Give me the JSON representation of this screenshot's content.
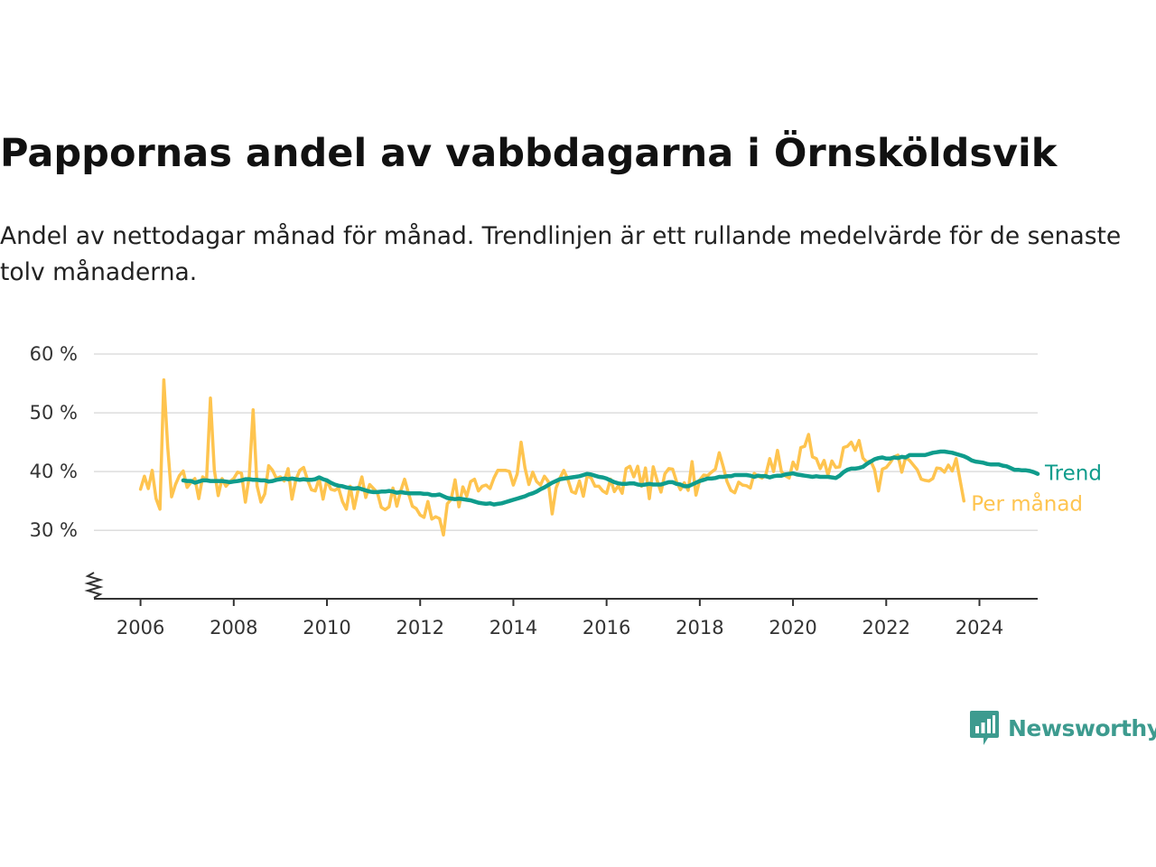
{
  "title": "Pappornas andel av vabbdagarna i Örnsköldsvik",
  "subtitle": "Andel av nettodagar månad för månad. Trendlinjen är ett rullande medelvärde för de senaste tolv månaderna.",
  "brand": {
    "name": "Newsworthy",
    "icon": "newsworthy-bar-chart-bubble-icon",
    "color": "#3d9b8f"
  },
  "chart_data": {
    "type": "line",
    "title": "Pappornas andel av vabbdagarna i Örnsköldsvik",
    "xlabel": "",
    "ylabel": "",
    "y_unit": "%",
    "xlim": [
      "2005-01",
      "2025-04"
    ],
    "ylim": [
      24.5,
      60
    ],
    "y_axis_break": true,
    "y_ticks": [
      30,
      40,
      50,
      60
    ],
    "y_tick_labels": [
      "30 %",
      "40 %",
      "50 %",
      "60 %"
    ],
    "x_ticks": [
      "2006",
      "2008",
      "2010",
      "2012",
      "2014",
      "2016",
      "2018",
      "2020",
      "2022",
      "2024"
    ],
    "grid": "horizontal",
    "legend": "direct labels at line ends (right)",
    "colors": {
      "monthly": "#fec44f",
      "trend": "#0f9c8c",
      "grid": "#dddddd",
      "axis": "#333333"
    },
    "series": [
      {
        "name": "Per månad",
        "start": "2006-01",
        "frequency": "monthly",
        "values": [
          37,
          39.2,
          37.1,
          40.2,
          35.4,
          33.6,
          55.6,
          44.2,
          35.7,
          37.8,
          39.3,
          40.1,
          37.3,
          38.2,
          38.8,
          35.4,
          39.1,
          38.6,
          52.5,
          40.3,
          35.9,
          38.8,
          37.5,
          38.3,
          38.8,
          39.9,
          39.7,
          34.8,
          39.2,
          50.5,
          37.6,
          34.8,
          36.2,
          41,
          40.2,
          38.8,
          39.1,
          38.4,
          40.5,
          35.3,
          38.6,
          40.2,
          40.7,
          38.6,
          36.9,
          36.7,
          38.8,
          35.3,
          38.6,
          37,
          36.8,
          37.2,
          34.9,
          33.6,
          37.5,
          33.7,
          36.8,
          39.1,
          35.6,
          37.8,
          37.1,
          36.4,
          33.9,
          33.5,
          34,
          37.2,
          34.1,
          36.7,
          38.7,
          36.3,
          34.1,
          33.7,
          32.6,
          32.2,
          34.9,
          31.9,
          32.3,
          32,
          29.2,
          34.5,
          35.3,
          38.6,
          34,
          37.4,
          35.8,
          38.3,
          38.7,
          36.7,
          37.5,
          37.7,
          37.1,
          38.9,
          40.2,
          40.2,
          40.2,
          40,
          37.7,
          39.6,
          45,
          40.6,
          37.8,
          39.9,
          38.3,
          37.7,
          39.2,
          38.3,
          32.8,
          37.2,
          38.9,
          40.2,
          38.7,
          36.6,
          36.3,
          38.4,
          35.8,
          39.3,
          38.9,
          37.5,
          37.5,
          36.7,
          36.3,
          38.7,
          36.6,
          37.6,
          36.3,
          40.5,
          40.9,
          39.1,
          40.9,
          37.5,
          40.6,
          35.4,
          40.8,
          38.5,
          36.5,
          39.6,
          40.5,
          40.4,
          38.3,
          36.9,
          38.1,
          36.8,
          41.7,
          36,
          38.6,
          39.4,
          39.3,
          39.9,
          40.4,
          43.2,
          40.9,
          38.3,
          36.8,
          36.4,
          38.2,
          37.7,
          37.6,
          37.2,
          39.7,
          39.2,
          38.9,
          39.5,
          42.2,
          40,
          43.6,
          40,
          39.3,
          38.9,
          41.6,
          40.4,
          44.1,
          44.3,
          46.3,
          42.5,
          42.2,
          40.5,
          41.9,
          39.4,
          41.8,
          40.7,
          40.8,
          44.1,
          44.3,
          45,
          43.6,
          45.3,
          42.3,
          41.6,
          41.8,
          40.3,
          36.7,
          40.4,
          40.7,
          41.5,
          42.5,
          42.8,
          39.9,
          42.4,
          41.9,
          41.1,
          40.3,
          38.7,
          38.5,
          38.4,
          38.8,
          40.6,
          40.5,
          39.9,
          41.1,
          40.1,
          42.2,
          38.6,
          35
        ]
      },
      {
        "name": "Trend",
        "start": "2006-12",
        "frequency": "monthly",
        "values": [
          38.5,
          38.4,
          38.4,
          38.1,
          38.3,
          38.5,
          38.5,
          38.4,
          38.4,
          38.4,
          38.4,
          38.3,
          38.2,
          38.3,
          38.4,
          38.5,
          38.7,
          38.7,
          38.6,
          38.6,
          38.5,
          38.5,
          38.3,
          38.4,
          38.6,
          38.7,
          38.8,
          38.7,
          38.8,
          38.7,
          38.6,
          38.7,
          38.6,
          38.6,
          38.7,
          39,
          38.7,
          38.5,
          38.1,
          37.8,
          37.6,
          37.5,
          37.3,
          37.2,
          37.1,
          37.2,
          37,
          36.8,
          36.6,
          36.5,
          36.5,
          36.6,
          36.6,
          36.7,
          36.6,
          36.4,
          36.5,
          36.4,
          36.3,
          36.3,
          36.3,
          36.3,
          36.2,
          36.2,
          36,
          36,
          36.1,
          35.8,
          35.5,
          35.4,
          35.3,
          35.4,
          35.3,
          35.2,
          35.1,
          34.9,
          34.7,
          34.6,
          34.5,
          34.6,
          34.4,
          34.5,
          34.6,
          34.8,
          35,
          35.2,
          35.4,
          35.6,
          35.8,
          36.1,
          36.3,
          36.6,
          37,
          37.3,
          37.7,
          38.1,
          38.4,
          38.7,
          38.8,
          38.9,
          39,
          39.1,
          39.2,
          39.4,
          39.6,
          39.5,
          39.3,
          39.1,
          39,
          38.8,
          38.5,
          38.2,
          38,
          37.9,
          37.9,
          38,
          38,
          37.8,
          37.7,
          37.8,
          37.9,
          37.8,
          37.8,
          37.8,
          38,
          38.2,
          38.2,
          37.9,
          37.8,
          37.5,
          37.5,
          37.8,
          38.1,
          38.4,
          38.6,
          38.8,
          38.8,
          38.9,
          39.1,
          39.1,
          39.2,
          39.2,
          39.4,
          39.4,
          39.4,
          39.4,
          39.3,
          39.1,
          39.3,
          39.2,
          39.2,
          39,
          39.2,
          39.3,
          39.3,
          39.5,
          39.6,
          39.7,
          39.5,
          39.4,
          39.3,
          39.2,
          39.1,
          39.2,
          39.1,
          39.1,
          39.1,
          39,
          38.9,
          39.3,
          39.9,
          40.3,
          40.5,
          40.5,
          40.6,
          40.8,
          41.3,
          41.7,
          42.1,
          42.3,
          42.4,
          42.2,
          42.2,
          42.4,
          42.3,
          42.5,
          42.4,
          42.8,
          42.8,
          42.8,
          42.8,
          42.8,
          43,
          43.2,
          43.3,
          43.4,
          43.4,
          43.3,
          43.2,
          43,
          42.8,
          42.6,
          42.3,
          41.9,
          41.7,
          41.6,
          41.5,
          41.3,
          41.2,
          41.2,
          41.2,
          41,
          40.9,
          40.6,
          40.3,
          40.3,
          40.2,
          40.2,
          40.1,
          39.9,
          39.6
        ]
      }
    ]
  }
}
